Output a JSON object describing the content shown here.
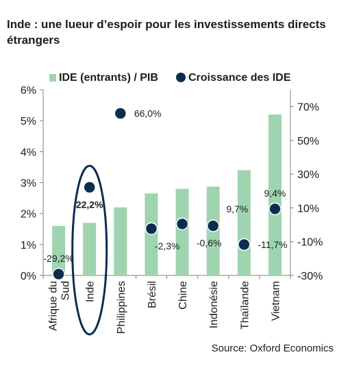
{
  "title": "Inde : une lueur d’espoir pour les investissements directs étrangers",
  "source": "Source: Oxford Economics",
  "chart_data": {
    "type": "bar",
    "categories": [
      [
        "Afrique du",
        "Sud"
      ],
      [
        "Inde"
      ],
      [
        "Philippines"
      ],
      [
        "Brésil"
      ],
      [
        "Chine"
      ],
      [
        "Indonésie"
      ],
      [
        "Thaïlande"
      ],
      [
        "Vietnam"
      ]
    ],
    "series": [
      {
        "name": "IDE (entrants) / PIB",
        "type": "bar",
        "axis": "left",
        "color": "#9fd4b0",
        "values": [
          1.6,
          1.7,
          2.2,
          2.65,
          2.8,
          2.87,
          3.4,
          5.2
        ]
      },
      {
        "name": "Croissance des IDE",
        "type": "scatter",
        "axis": "right",
        "color": "#0d2d4f",
        "values": [
          -29.2,
          22.2,
          66.0,
          -2.3,
          0.5,
          -0.6,
          -11.7,
          9.4
        ],
        "labels": [
          "-29,2%",
          "22,2%",
          "66,0%",
          "-2,3%",
          "",
          "-0,6%",
          "-11,7%",
          "9,4%"
        ]
      }
    ],
    "extra_labels": [
      {
        "text": "9,7%"
      }
    ],
    "left_axis": {
      "min": 0,
      "max": 6,
      "ticks": [
        "0%",
        "1%",
        "2%",
        "3%",
        "4%",
        "5%",
        "6%"
      ]
    },
    "right_axis": {
      "min": -30,
      "max": 80,
      "ticks": [
        "-30%",
        "-10%",
        "10%",
        "30%",
        "50%",
        "70%"
      ]
    },
    "highlight_category": "Inde",
    "highlight_color": "#0d2d4f",
    "legend_position": "top"
  }
}
